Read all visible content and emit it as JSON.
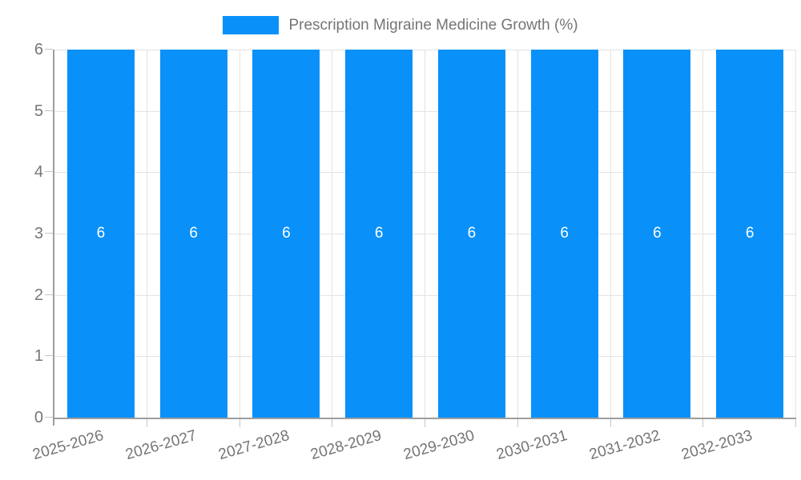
{
  "chart_data": {
    "type": "bar",
    "title": "Prescription Migraine Medicine Growth (%)",
    "categories": [
      "2025-2026",
      "2026-2027",
      "2027-2028",
      "2028-2029",
      "2029-2030",
      "2030-2031",
      "2031-2032",
      "2032-2033"
    ],
    "values": [
      6,
      6,
      6,
      6,
      6,
      6,
      6,
      6
    ],
    "bar_value_labels": [
      "6",
      "6",
      "6",
      "6",
      "6",
      "6",
      "6",
      "6"
    ],
    "xlabel": "",
    "ylabel": "",
    "ylim": [
      0,
      6
    ],
    "yticks": [
      0,
      1,
      2,
      3,
      4,
      5,
      6
    ],
    "grid": true,
    "legend": {
      "label": "Prescription Migraine Medicine Growth (%)",
      "position": "top-center"
    },
    "colors": {
      "bar": "#0991f9",
      "bar_value_label": "#ffffff",
      "axis_line": "#9e9e9e",
      "grid_line": "#e3e3e3",
      "tick_mark": "#c6c6c6",
      "tick_text": "#757575",
      "legend_text": "#757575",
      "background": "#ffffff"
    }
  }
}
